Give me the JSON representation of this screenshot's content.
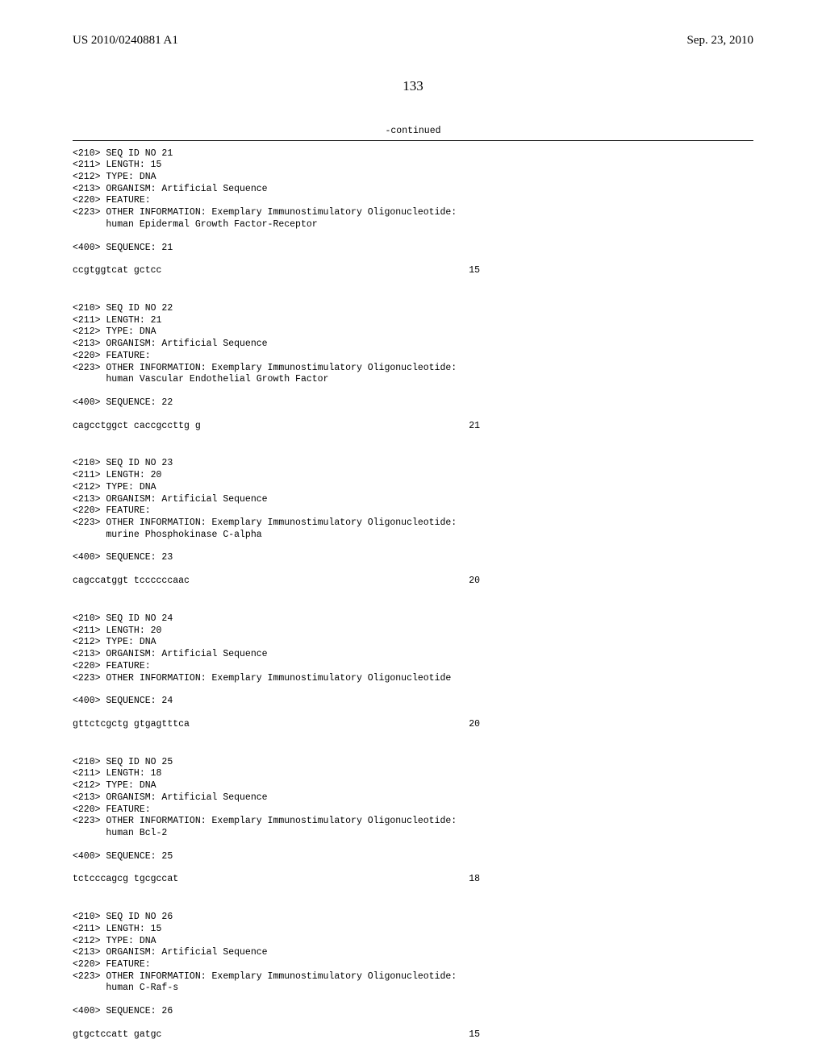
{
  "header": {
    "pub_number": "US 2010/0240881 A1",
    "pub_date": "Sep. 23, 2010"
  },
  "page_number": "133",
  "continued_label": "-continued",
  "sequences": [
    {
      "meta": [
        "<210> SEQ ID NO 21",
        "<211> LENGTH: 15",
        "<212> TYPE: DNA",
        "<213> ORGANISM: Artificial Sequence",
        "<220> FEATURE:",
        "<223> OTHER INFORMATION: Exemplary Immunostimulatory Oligonucleotide:",
        "      human Epidermal Growth Factor-Receptor"
      ],
      "seq_label": "<400> SEQUENCE: 21",
      "sequence": "ccgtggtcat gctcc",
      "length": "15"
    },
    {
      "meta": [
        "<210> SEQ ID NO 22",
        "<211> LENGTH: 21",
        "<212> TYPE: DNA",
        "<213> ORGANISM: Artificial Sequence",
        "<220> FEATURE:",
        "<223> OTHER INFORMATION: Exemplary Immunostimulatory Oligonucleotide:",
        "      human Vascular Endothelial Growth Factor"
      ],
      "seq_label": "<400> SEQUENCE: 22",
      "sequence": "cagcctggct caccgccttg g",
      "length": "21"
    },
    {
      "meta": [
        "<210> SEQ ID NO 23",
        "<211> LENGTH: 20",
        "<212> TYPE: DNA",
        "<213> ORGANISM: Artificial Sequence",
        "<220> FEATURE:",
        "<223> OTHER INFORMATION: Exemplary Immunostimulatory Oligonucleotide:",
        "      murine Phosphokinase C-alpha"
      ],
      "seq_label": "<400> SEQUENCE: 23",
      "sequence": "cagccatggt tccccccaac",
      "length": "20"
    },
    {
      "meta": [
        "<210> SEQ ID NO 24",
        "<211> LENGTH: 20",
        "<212> TYPE: DNA",
        "<213> ORGANISM: Artificial Sequence",
        "<220> FEATURE:",
        "<223> OTHER INFORMATION: Exemplary Immunostimulatory Oligonucleotide"
      ],
      "seq_label": "<400> SEQUENCE: 24",
      "sequence": "gttctcgctg gtgagtttca",
      "length": "20"
    },
    {
      "meta": [
        "<210> SEQ ID NO 25",
        "<211> LENGTH: 18",
        "<212> TYPE: DNA",
        "<213> ORGANISM: Artificial Sequence",
        "<220> FEATURE:",
        "<223> OTHER INFORMATION: Exemplary Immunostimulatory Oligonucleotide:",
        "      human Bcl-2"
      ],
      "seq_label": "<400> SEQUENCE: 25",
      "sequence": "tctcccagcg tgcgccat",
      "length": "18"
    },
    {
      "meta": [
        "<210> SEQ ID NO 26",
        "<211> LENGTH: 15",
        "<212> TYPE: DNA",
        "<213> ORGANISM: Artificial Sequence",
        "<220> FEATURE:",
        "<223> OTHER INFORMATION: Exemplary Immunostimulatory Oligonucleotide:",
        "      human C-Raf-s"
      ],
      "seq_label": "<400> SEQUENCE: 26",
      "sequence": "gtgctccatt gatgc",
      "length": "15"
    }
  ]
}
